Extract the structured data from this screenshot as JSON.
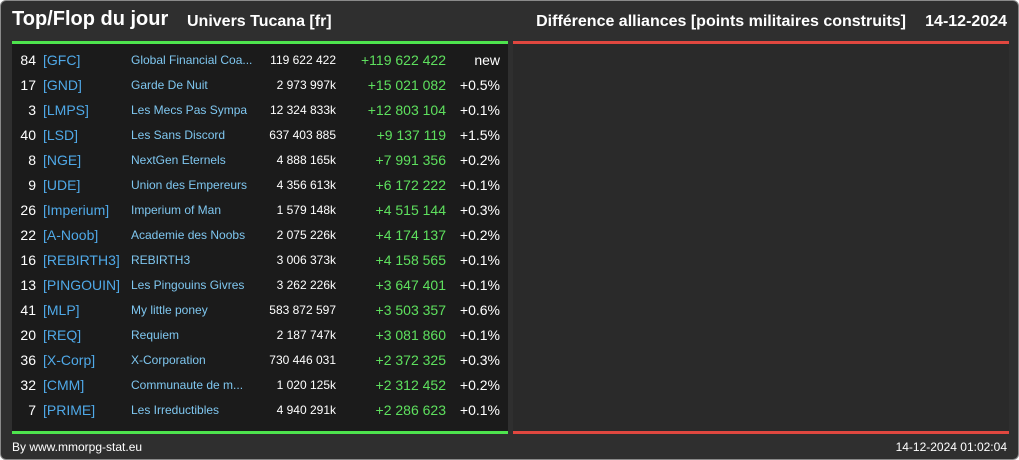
{
  "header": {
    "title": "Top/Flop du jour",
    "universe": "Univers Tucana [fr]",
    "subject": "Différence alliances [points militaires construits]",
    "date": "14-12-2024"
  },
  "colors": {
    "top_line": "#4ee44e",
    "flop_line": "#e0473f",
    "tag": "#4fa9e8",
    "name": "#7fc7f0",
    "gain": "#5ee05e"
  },
  "rows": [
    {
      "rank": "84",
      "tag": "[GFC]",
      "name": "Global Financial Coa...",
      "total": "119 622 422",
      "diff": "+119 622 422",
      "pct": "new"
    },
    {
      "rank": "17",
      "tag": "[GND]",
      "name": "Garde De Nuit",
      "total": "2 973 997k",
      "diff": "+15 021 082",
      "pct": "+0.5%"
    },
    {
      "rank": "3",
      "tag": "[LMPS]",
      "name": "Les Mecs Pas Sympa",
      "total": "12 324 833k",
      "diff": "+12 803 104",
      "pct": "+0.1%"
    },
    {
      "rank": "40",
      "tag": "[LSD]",
      "name": "Les Sans Discord",
      "total": "637 403 885",
      "diff": "+9 137 119",
      "pct": "+1.5%"
    },
    {
      "rank": "8",
      "tag": "[NGE]",
      "name": "NextGen Eternels",
      "total": "4 888 165k",
      "diff": "+7 991 356",
      "pct": "+0.2%"
    },
    {
      "rank": "9",
      "tag": "[UDE]",
      "name": "Union des Empereurs",
      "total": "4 356 613k",
      "diff": "+6 172 222",
      "pct": "+0.1%"
    },
    {
      "rank": "26",
      "tag": "[Imperium]",
      "name": "Imperium of Man",
      "total": "1 579 148k",
      "diff": "+4 515 144",
      "pct": "+0.3%"
    },
    {
      "rank": "22",
      "tag": "[A-Noob]",
      "name": "Academie des Noobs",
      "total": "2 075 226k",
      "diff": "+4 174 137",
      "pct": "+0.2%"
    },
    {
      "rank": "16",
      "tag": "[REBIRTH3]",
      "name": "REBIRTH3",
      "total": "3 006 373k",
      "diff": "+4 158 565",
      "pct": "+0.1%"
    },
    {
      "rank": "13",
      "tag": "[PINGOUIN]",
      "name": "Les Pingouins Givres",
      "total": "3 262 226k",
      "diff": "+3 647 401",
      "pct": "+0.1%"
    },
    {
      "rank": "41",
      "tag": "[MLP]",
      "name": "My little poney",
      "total": "583 872 597",
      "diff": "+3 503 357",
      "pct": "+0.6%"
    },
    {
      "rank": "20",
      "tag": "[REQ]",
      "name": "Requiem",
      "total": "2 187 747k",
      "diff": "+3 081 860",
      "pct": "+0.1%"
    },
    {
      "rank": "36",
      "tag": "[X-Corp]",
      "name": "X-Corporation",
      "total": "730 446 031",
      "diff": "+2 372 325",
      "pct": "+0.3%"
    },
    {
      "rank": "32",
      "tag": "[CMM]",
      "name": "Communaute de m...",
      "total": "1 020 125k",
      "diff": "+2 312 452",
      "pct": "+0.2%"
    },
    {
      "rank": "7",
      "tag": "[PRIME]",
      "name": "Les Irreductibles",
      "total": "4 940 291k",
      "diff": "+2 286 623",
      "pct": "+0.1%"
    }
  ],
  "footer": {
    "credit": "By www.mmorpg-stat.eu",
    "timestamp": "14-12-2024 01:02:04"
  }
}
